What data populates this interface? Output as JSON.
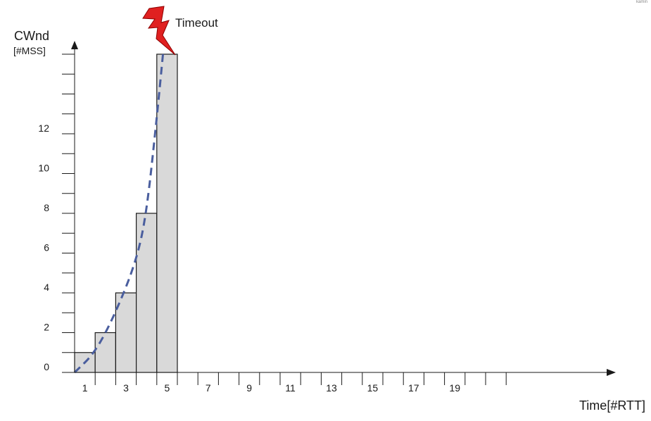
{
  "chart_data": {
    "type": "bar",
    "title": "",
    "ylabel": "CWnd",
    "ylabel_unit": "[#MSS]",
    "xlabel": "Time[#RTT]",
    "x": [
      1,
      2,
      3,
      4,
      5
    ],
    "values": [
      1,
      2,
      4,
      8,
      16
    ],
    "xlim": [
      0.5,
      22.5
    ],
    "ylim": [
      0,
      17
    ],
    "y_ticks": [
      0,
      2,
      4,
      6,
      8,
      10,
      12
    ],
    "y_minor_ticks": [
      1,
      3,
      5,
      7,
      9,
      11,
      13,
      14,
      15,
      16
    ],
    "x_tick_labels": [
      1,
      3,
      5,
      7,
      9,
      11,
      13,
      15,
      17,
      19
    ],
    "x_minor_ticks": [
      1.5,
      2.5,
      3.5,
      4.5,
      5.5,
      6.5,
      7.5,
      8.5,
      9.5,
      10.5,
      11.5,
      12.5,
      13.5,
      14.5,
      15.5,
      16.5,
      17.5,
      18.5,
      19.5,
      20.5,
      21.5
    ],
    "trend": {
      "style": "dashed",
      "color": "#4a5e9e",
      "points": [
        [
          0.5,
          0
        ],
        [
          1.5,
          1
        ],
        [
          2.5,
          3
        ],
        [
          3.5,
          5.6
        ],
        [
          4,
          8
        ],
        [
          4.5,
          12.8
        ],
        [
          4.8,
          16
        ]
      ]
    },
    "bar_fill": "#d9d9d9",
    "bar_stroke": "#1a1a1a",
    "grid": false,
    "legend": "none",
    "annotations": [
      {
        "text": "Timeout",
        "x": 4.9,
        "y": 16,
        "icon": "lightning-bolt-icon",
        "color": "#e02020"
      }
    ]
  },
  "corner_mark": "kamin"
}
